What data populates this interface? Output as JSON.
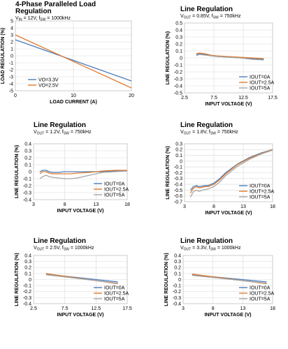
{
  "colors": {
    "blue": "#4a7ebb",
    "orange": "#e07a2e",
    "gray": "#a6a6a6"
  },
  "chart_data": [
    {
      "type": "line",
      "title": "4-Phase Paralleled Load Regulation",
      "title_lines": [
        "4-Phase Paralleled Load",
        "Regulation"
      ],
      "subtitle": {
        "a": "V",
        "a_sub": "IN",
        "b": " = 12V, f",
        "b_sub": "SW",
        "c": " = 1000kHz"
      },
      "xlabel": "LOAD CURRENT (A)",
      "ylabel": "LOAD REGULATION (%)",
      "xlim": [
        0,
        20
      ],
      "ylim": [
        -5,
        5
      ],
      "xticks": [
        "0",
        "10",
        "20"
      ],
      "yticks": [
        "-5",
        "-4",
        "-3",
        "-2",
        "-1",
        "0",
        "1",
        "2",
        "3",
        "4",
        "5"
      ],
      "grid": true,
      "legend_position": "bottom-left",
      "series": [
        {
          "name": "VO=3.3V",
          "color": "blue",
          "x": [
            0,
            20
          ],
          "y": [
            2.3,
            -3.6
          ]
        },
        {
          "name": "VO=2.5V",
          "color": "orange",
          "x": [
            0,
            20
          ],
          "y": [
            3.0,
            -4.6
          ]
        }
      ]
    },
    {
      "type": "line",
      "title": "Line Regulation",
      "title_lines": [
        "Line Regulation"
      ],
      "subtitle": {
        "a": "V",
        "a_sub": "OUT",
        "b": " = 0.85V, f",
        "b_sub": "SW",
        "c": " = 750kHz"
      },
      "xlabel": "INPUT VOLTAGE (V)",
      "ylabel": "LINE REGULATION (%)",
      "xlim": [
        2.5,
        17.5
      ],
      "ylim": [
        -0.5,
        0.5
      ],
      "xticks": [
        "2.5",
        "7.5",
        "12.5",
        "17.5"
      ],
      "yticks": [
        "-0.5",
        "-0.4",
        "-0.3",
        "-0.2",
        "-0.1",
        "0",
        "0.1",
        "0.2",
        "0.3",
        "0.4",
        "0.5"
      ],
      "grid": true,
      "legend_position": "bottom-right",
      "series": [
        {
          "name": "IOUT=0A",
          "color": "blue",
          "x": [
            4.5,
            5,
            6,
            7,
            8,
            10,
            12,
            14,
            16
          ],
          "y": [
            0.05,
            0.06,
            0.05,
            0.03,
            0.02,
            0.01,
            0.0,
            -0.01,
            -0.02
          ]
        },
        {
          "name": "IOUT=2.5A",
          "color": "orange",
          "x": [
            4.5,
            5,
            6,
            7,
            8,
            10,
            12,
            14,
            16
          ],
          "y": [
            0.06,
            0.07,
            0.06,
            0.04,
            0.03,
            0.02,
            0.01,
            0.0,
            -0.01
          ]
        },
        {
          "name": "IOUT=5A",
          "color": "gray",
          "x": [
            4.5,
            5,
            6,
            7,
            8,
            10,
            12,
            14,
            16
          ],
          "y": [
            0.03,
            0.05,
            0.04,
            0.03,
            0.02,
            0.01,
            0.0,
            -0.02,
            -0.03
          ]
        }
      ]
    },
    {
      "type": "line",
      "title": "Line Regulation",
      "title_lines": [
        "Line Regulation"
      ],
      "subtitle": {
        "a": "V",
        "a_sub": "OUT",
        "b": " = 1.2V, f",
        "b_sub": "SW",
        "c": " = 750kHz"
      },
      "xlabel": "INPUT VOLTAGE (V)",
      "ylabel": "LINE REGULATION (%)",
      "xlim": [
        3,
        18
      ],
      "ylim": [
        -0.4,
        0.4
      ],
      "xticks": [
        "3",
        "8",
        "13",
        "18"
      ],
      "yticks": [
        "-0.4",
        "-0.3",
        "-0.2",
        "-0.1",
        "0",
        "0.1",
        "0.2",
        "0.3",
        "0.4"
      ],
      "grid": true,
      "legend_position": "bottom-right",
      "series": [
        {
          "name": "IOUT=0A",
          "color": "blue",
          "x": [
            4,
            4.5,
            5,
            5.5,
            6,
            7,
            8,
            9,
            10,
            12,
            14,
            16,
            18
          ],
          "y": [
            0.0,
            0.02,
            0.02,
            0.0,
            -0.01,
            -0.01,
            0.0,
            0.0,
            0.0,
            0.0,
            0.0,
            0.01,
            0.02
          ]
        },
        {
          "name": "IOUT=2.5A",
          "color": "orange",
          "x": [
            4,
            4.5,
            5,
            5.5,
            6,
            7,
            8,
            9,
            10,
            12,
            14,
            16,
            18
          ],
          "y": [
            -0.03,
            0.0,
            0.0,
            -0.02,
            -0.03,
            -0.03,
            -0.03,
            -0.03,
            -0.02,
            -0.01,
            0.01,
            0.02,
            0.02
          ]
        },
        {
          "name": "IOUT=5A",
          "color": "gray",
          "x": [
            4,
            4.5,
            5,
            5.5,
            6,
            7,
            8,
            9,
            10,
            12,
            14,
            16,
            18
          ],
          "y": [
            -0.1,
            -0.07,
            -0.05,
            -0.07,
            -0.08,
            -0.09,
            -0.1,
            -0.1,
            -0.09,
            -0.05,
            -0.01,
            0.0,
            0.01
          ]
        }
      ]
    },
    {
      "type": "line",
      "title": "Line Regulation",
      "title_lines": [
        "Line Regulation"
      ],
      "subtitle": {
        "a": "V",
        "a_sub": "OUT",
        "b": " = 1.8V, f",
        "b_sub": "SW",
        "c": " = 750kHz"
      },
      "xlabel": "INPUT VOLTAGE (V)",
      "ylabel": "LINE REGULATION (%)",
      "xlim": [
        3,
        18
      ],
      "ylim": [
        -0.7,
        0.3
      ],
      "xticks": [
        "3",
        "8",
        "13",
        "18"
      ],
      "yticks": [
        "-0.7",
        "-0.6",
        "-0.5",
        "-0.4",
        "-0.3",
        "-0.2",
        "-0.1",
        "0",
        "0.1",
        "0.2",
        "0.3"
      ],
      "grid": true,
      "legend_position": "bottom-right",
      "series": [
        {
          "name": "IOUT=0A",
          "color": "blue",
          "x": [
            4,
            4.5,
            5,
            5.5,
            6,
            6.5,
            7,
            8,
            9,
            10,
            12,
            14,
            16,
            18
          ],
          "y": [
            -0.5,
            -0.44,
            -0.42,
            -0.44,
            -0.43,
            -0.42,
            -0.42,
            -0.38,
            -0.3,
            -0.2,
            -0.05,
            0.06,
            0.14,
            0.2
          ]
        },
        {
          "name": "IOUT=2.5A",
          "color": "orange",
          "x": [
            4,
            4.5,
            5,
            5.5,
            6,
            6.5,
            7,
            8,
            9,
            10,
            12,
            14,
            16,
            18
          ],
          "y": [
            -0.55,
            -0.47,
            -0.44,
            -0.46,
            -0.45,
            -0.44,
            -0.44,
            -0.4,
            -0.32,
            -0.22,
            -0.06,
            0.05,
            0.13,
            0.2
          ]
        },
        {
          "name": "IOUT=5A",
          "color": "gray",
          "x": [
            4,
            4.5,
            5,
            5.5,
            6,
            6.5,
            7,
            8,
            9,
            10,
            12,
            14,
            16,
            18
          ],
          "y": [
            -0.62,
            -0.53,
            -0.5,
            -0.52,
            -0.5,
            -0.49,
            -0.48,
            -0.44,
            -0.36,
            -0.25,
            -0.09,
            0.03,
            0.12,
            0.19
          ]
        }
      ]
    },
    {
      "type": "line",
      "title": "Line Regulation",
      "title_lines": [
        "Line Regulation"
      ],
      "subtitle": {
        "a": "V",
        "a_sub": "OUT",
        "b": " = 2.5V, f",
        "b_sub": "SW",
        "c": " = 1000kHz"
      },
      "xlabel": "INPUT VOLTAGE (V)",
      "ylabel": "LINE REGULATION (%)",
      "xlim": [
        2.5,
        17.5
      ],
      "ylim": [
        -0.4,
        0.4
      ],
      "xticks": [
        "2.5",
        "7.5",
        "12.5",
        "17.5"
      ],
      "yticks": [
        "-0.4",
        "-0.3",
        "-0.2",
        "-0.1",
        "0",
        "0.1",
        "0.2",
        "0.3",
        "0.4"
      ],
      "grid": true,
      "legend_position": "bottom-right",
      "series": [
        {
          "name": "IOUT=0A",
          "color": "blue",
          "x": [
            4.5,
            16
          ],
          "y": [
            0.09,
            -0.04
          ]
        },
        {
          "name": "IOUT=2.5A",
          "color": "orange",
          "x": [
            4.5,
            16
          ],
          "y": [
            0.1,
            -0.07
          ]
        },
        {
          "name": "IOUT=5A",
          "color": "gray",
          "x": [
            4.5,
            16
          ],
          "y": [
            0.08,
            -0.06
          ]
        }
      ]
    },
    {
      "type": "line",
      "title": "Line Regulation",
      "title_lines": [
        "Line Regulation"
      ],
      "subtitle": {
        "a": "V",
        "a_sub": "OUT",
        "b": " = 3.3V, f",
        "b_sub": "SW",
        "c": " = 1000kHz"
      },
      "xlabel": "INPUT VOLTAGE (V)",
      "ylabel": "LINE REGULATION (%)",
      "xlim": [
        3,
        18
      ],
      "ylim": [
        -0.4,
        0.4
      ],
      "xticks": [
        "3",
        "8",
        "13",
        "18"
      ],
      "yticks": [
        "-0.4",
        "-0.3",
        "-0.2",
        "-0.1",
        "0",
        "0.1",
        "0.2",
        "0.3",
        "0.4"
      ],
      "grid": true,
      "legend_position": "bottom-right",
      "series": [
        {
          "name": "IOUT=0A",
          "color": "blue",
          "x": [
            4.5,
            17
          ],
          "y": [
            0.08,
            -0.04
          ]
        },
        {
          "name": "IOUT=2.5A",
          "color": "orange",
          "x": [
            4.5,
            17
          ],
          "y": [
            0.09,
            -0.07
          ]
        },
        {
          "name": "IOUT=5A",
          "color": "gray",
          "x": [
            4.5,
            17
          ],
          "y": [
            0.07,
            -0.06
          ]
        }
      ]
    }
  ]
}
